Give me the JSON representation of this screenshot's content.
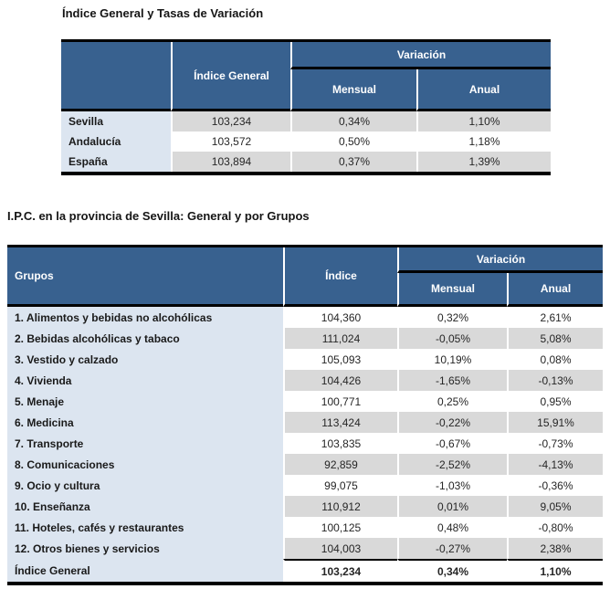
{
  "colors": {
    "header_blue": "#38618F",
    "label_blue": "#DCE5F0",
    "row_gray": "#D9D9D9",
    "row_white": "#FFFFFF",
    "border_black": "#000000",
    "header_text": "#FFFFFF"
  },
  "section1": {
    "title": "Índice General y Tasas de Variación",
    "table": {
      "corner_label": "",
      "col1_header": "Índice General",
      "variacion_header": "Variación",
      "sub_headers": [
        "Mensual",
        "Anual"
      ],
      "first_row_shaded": true,
      "rows": [
        {
          "label": "Sevilla",
          "indice": "103,234",
          "mensual": "0,34%",
          "anual": "1,10%"
        },
        {
          "label": "Andalucía",
          "indice": "103,572",
          "mensual": "0,50%",
          "anual": "1,18%"
        },
        {
          "label": "España",
          "indice": "103,894",
          "mensual": "0,37%",
          "anual": "1,39%"
        }
      ]
    }
  },
  "section2": {
    "title": "I.P.C. en la provincia de Sevilla: General y por Grupos",
    "table": {
      "groups_header": "Grupos",
      "col1_header": "Índice",
      "variacion_header": "Variación",
      "sub_headers": [
        "Mensual",
        "Anual"
      ],
      "first_row_shaded": false,
      "rows": [
        {
          "label": "1. Alimentos y bebidas no alcohólicas",
          "indice": "104,360",
          "mensual": "0,32%",
          "anual": "2,61%"
        },
        {
          "label": "2. Bebidas alcohólicas y tabaco",
          "indice": "111,024",
          "mensual": "-0,05%",
          "anual": "5,08%"
        },
        {
          "label": "3. Vestido y calzado",
          "indice": "105,093",
          "mensual": "10,19%",
          "anual": "0,08%"
        },
        {
          "label": "4. Vivienda",
          "indice": "104,426",
          "mensual": "-1,65%",
          "anual": "-0,13%"
        },
        {
          "label": "5. Menaje",
          "indice": "100,771",
          "mensual": "0,25%",
          "anual": "0,95%"
        },
        {
          "label": "6. Medicina",
          "indice": "113,424",
          "mensual": "-0,22%",
          "anual": "15,91%"
        },
        {
          "label": "7. Transporte",
          "indice": "103,835",
          "mensual": "-0,67%",
          "anual": "-0,73%"
        },
        {
          "label": "8. Comunicaciones",
          "indice": "92,859",
          "mensual": "-2,52%",
          "anual": "-4,13%"
        },
        {
          "label": "9. Ocio y cultura",
          "indice": "99,075",
          "mensual": "-1,03%",
          "anual": "-0,36%"
        },
        {
          "label": "10. Enseñanza",
          "indice": "110,912",
          "mensual": "0,01%",
          "anual": "9,05%"
        },
        {
          "label": "11. Hoteles, cafés y restaurantes",
          "indice": "100,125",
          "mensual": "0,48%",
          "anual": "-0,80%"
        },
        {
          "label": "12. Otros bienes y servicios",
          "indice": "104,003",
          "mensual": "-0,27%",
          "anual": "2,38%"
        },
        {
          "label": "Índice General",
          "indice": "103,234",
          "mensual": "0,34%",
          "anual": "1,10%",
          "bold": true
        }
      ]
    }
  }
}
